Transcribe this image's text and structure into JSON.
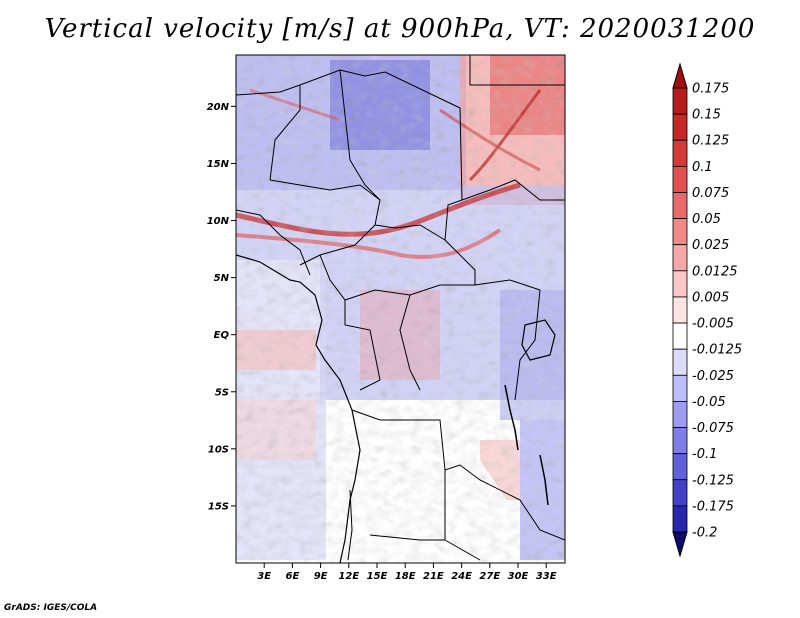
{
  "title": "Vertical velocity [m/s] at 900hPa, VT: 2020031200",
  "footer": "GrADS: IGES/COLA",
  "map": {
    "lon_range": [
      0,
      35
    ],
    "lat_range": [
      -20,
      24.5
    ],
    "lat_ticks": [
      {
        "value": 20,
        "label": "20N"
      },
      {
        "value": 15,
        "label": "15N"
      },
      {
        "value": 10,
        "label": "10N"
      },
      {
        "value": 5,
        "label": "5N"
      },
      {
        "value": 0,
        "label": "EQ"
      },
      {
        "value": -5,
        "label": "5S"
      },
      {
        "value": -10,
        "label": "10S"
      },
      {
        "value": -15,
        "label": "15S"
      }
    ],
    "lon_ticks": [
      {
        "value": 3,
        "label": "3E"
      },
      {
        "value": 6,
        "label": "6E"
      },
      {
        "value": 9,
        "label": "9E"
      },
      {
        "value": 12,
        "label": "12E"
      },
      {
        "value": 15,
        "label": "15E"
      },
      {
        "value": 18,
        "label": "18E"
      },
      {
        "value": 21,
        "label": "21E"
      },
      {
        "value": 24,
        "label": "24E"
      },
      {
        "value": 27,
        "label": "27E"
      },
      {
        "value": 30,
        "label": "30E"
      },
      {
        "value": 33,
        "label": "33E"
      }
    ]
  },
  "colorbar": {
    "levels": [
      {
        "label": "0.175",
        "color": "#b71c1c"
      },
      {
        "label": "0.15",
        "color": "#c62828"
      },
      {
        "label": "0.125",
        "color": "#d33b3b"
      },
      {
        "label": "0.1",
        "color": "#e05050"
      },
      {
        "label": "0.075",
        "color": "#e86a6a"
      },
      {
        "label": "0.05",
        "color": "#f08888"
      },
      {
        "label": "0.025",
        "color": "#f6a8a8"
      },
      {
        "label": "0.0125",
        "color": "#fbc8c8"
      },
      {
        "label": "0.005",
        "color": "#fde4e4"
      },
      {
        "label": "-0.005",
        "color": "#ffffff"
      },
      {
        "label": "-0.0125",
        "color": "#dcdcfb"
      },
      {
        "label": "-0.025",
        "color": "#bcbcf6"
      },
      {
        "label": "-0.05",
        "color": "#9c9cf0"
      },
      {
        "label": "-0.075",
        "color": "#7e7ee6"
      },
      {
        "label": "-0.1",
        "color": "#6060d8"
      },
      {
        "label": "-0.125",
        "color": "#4242c6"
      },
      {
        "label": "-0.175",
        "color": "#2828ae"
      },
      {
        "label": "-0.2",
        "color": "#161690"
      }
    ],
    "below_color": "#0c0c70",
    "above_color": "#a01010"
  }
}
